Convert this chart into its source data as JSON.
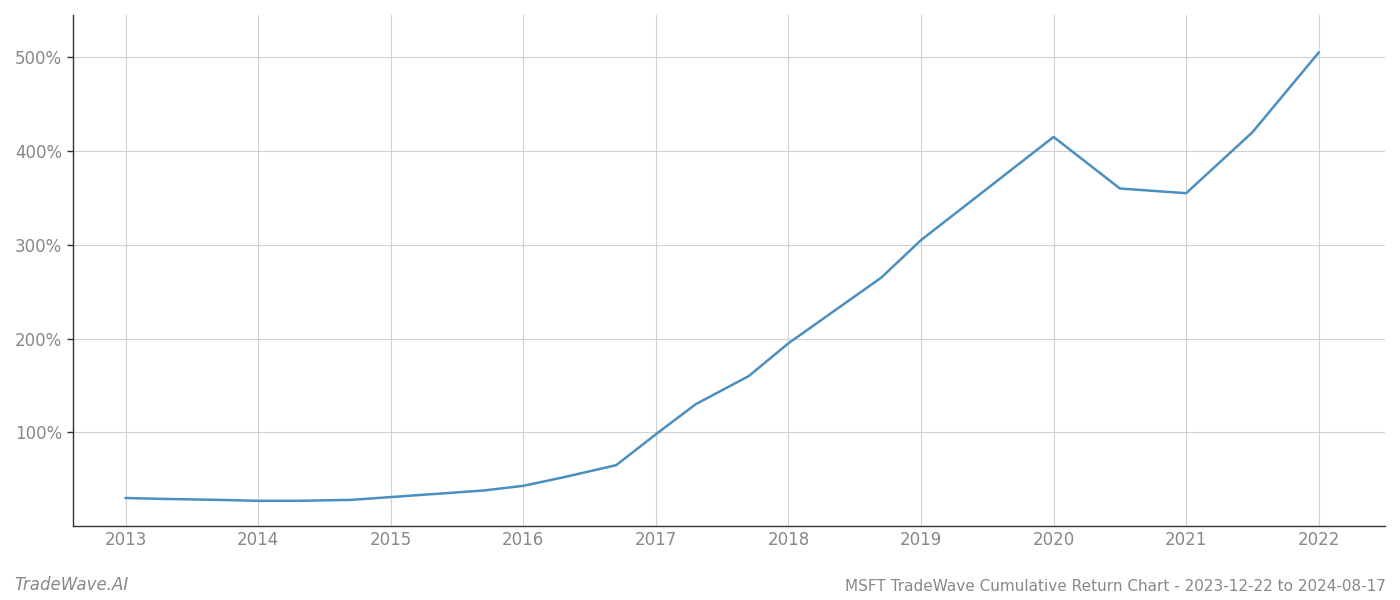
{
  "title": "MSFT TradeWave Cumulative Return Chart - 2023-12-22 to 2024-08-17",
  "watermark": "TradeWave.AI",
  "line_color": "#4A8FC0",
  "background_color": "#ffffff",
  "grid_color": "#cccccc",
  "x_years": [
    2013,
    2014,
    2015,
    2016,
    2017,
    2018,
    2019,
    2020,
    2021,
    2022
  ],
  "data_points": [
    [
      2013.0,
      30
    ],
    [
      2013.3,
      29
    ],
    [
      2013.7,
      28
    ],
    [
      2014.0,
      27
    ],
    [
      2014.3,
      27
    ],
    [
      2014.7,
      28
    ],
    [
      2015.0,
      31
    ],
    [
      2015.3,
      34
    ],
    [
      2015.7,
      38
    ],
    [
      2016.0,
      43
    ],
    [
      2016.3,
      52
    ],
    [
      2016.7,
      65
    ],
    [
      2017.0,
      98
    ],
    [
      2017.3,
      130
    ],
    [
      2017.7,
      160
    ],
    [
      2018.0,
      195
    ],
    [
      2018.3,
      225
    ],
    [
      2018.7,
      265
    ],
    [
      2019.0,
      305
    ],
    [
      2019.5,
      360
    ],
    [
      2020.0,
      415
    ],
    [
      2020.5,
      360
    ],
    [
      2021.0,
      355
    ],
    [
      2021.5,
      420
    ],
    [
      2022.0,
      505
    ]
  ],
  "ylim": [
    0,
    545
  ],
  "xlim": [
    2012.6,
    2022.5
  ],
  "yticks": [
    100,
    200,
    300,
    400,
    500
  ],
  "ytick_labels": [
    "100%",
    "200%",
    "300%",
    "400%",
    "500%"
  ],
  "title_fontsize": 11,
  "watermark_fontsize": 12,
  "tick_fontsize": 12,
  "line_width": 1.8
}
